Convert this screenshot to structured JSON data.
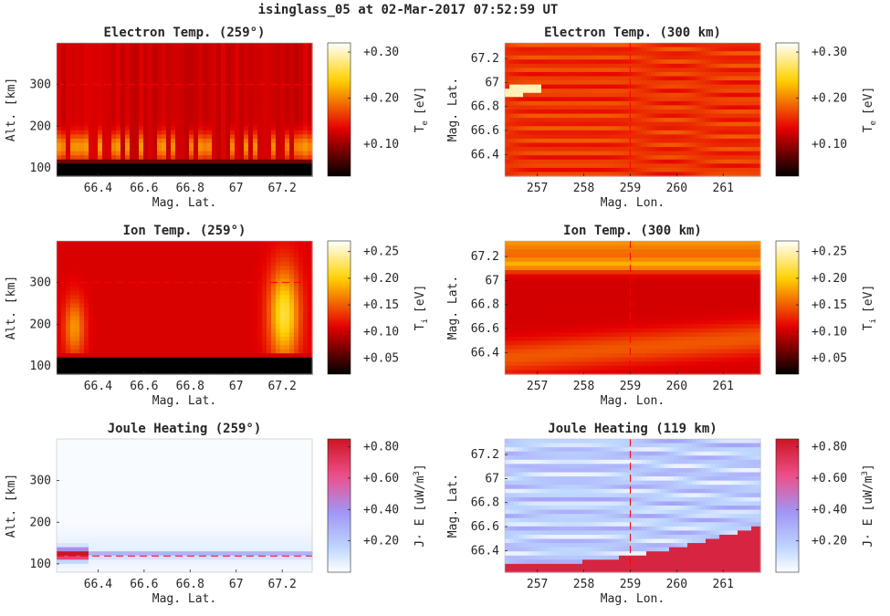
{
  "figure_title": "isinglass_05 at 02-Mar-2017 07:52:59 UT",
  "chart_data": [
    {
      "id": "te_alt",
      "type": "heatmap",
      "title": "Electron Temp. (259°)",
      "xlabel": "Mag. Lat.",
      "ylabel": "Alt. [km]",
      "xlim": [
        66.22,
        67.33
      ],
      "ylim": [
        80,
        400
      ],
      "xticks": [
        66.4,
        66.6,
        66.8,
        67.0,
        67.2
      ],
      "xtick_labels": [
        "66.4",
        "66.6",
        "66.8",
        "67",
        "67.2"
      ],
      "yticks": [
        100,
        200,
        300
      ],
      "ytick_labels": [
        "100",
        "200",
        "300"
      ],
      "colormap": "hot",
      "colorbar": {
        "label": "Te [eV]",
        "label_main": "T",
        "label_sub": "e",
        "label_unit": "[eV]",
        "range": [
          0.03,
          0.32
        ],
        "ticks": [
          0.1,
          0.2,
          0.3
        ],
        "tick_labels": [
          "+0.10",
          "+0.20",
          "+0.30"
        ]
      },
      "reference_line": {
        "axis": "y",
        "value": 300,
        "color": "#ff0000"
      }
    },
    {
      "id": "te_map",
      "type": "heatmap",
      "title": "Electron Temp. (300 km)",
      "xlabel": "Mag. Lon.",
      "ylabel": "Mag. Lat.",
      "xlim": [
        256.3,
        261.8
      ],
      "ylim": [
        66.22,
        67.33
      ],
      "xticks": [
        257,
        258,
        259,
        260,
        261
      ],
      "xtick_labels": [
        "257",
        "258",
        "259",
        "260",
        "261"
      ],
      "yticks": [
        66.4,
        66.6,
        66.8,
        67.0,
        67.2
      ],
      "ytick_labels": [
        "66.4",
        "66.6",
        "66.8",
        "67",
        "67.2"
      ],
      "colormap": "hot",
      "colorbar": {
        "label": "Te [eV]",
        "label_main": "T",
        "label_sub": "e",
        "label_unit": "[eV]",
        "range": [
          0.03,
          0.32
        ],
        "ticks": [
          0.1,
          0.2,
          0.3
        ],
        "tick_labels": [
          "+0.10",
          "+0.20",
          "+0.30"
        ]
      },
      "reference_line": {
        "axis": "x",
        "value": 259,
        "color": "#ff0000"
      }
    },
    {
      "id": "ti_alt",
      "type": "heatmap",
      "title": "Ion Temp. (259°)",
      "xlabel": "Mag. Lat.",
      "ylabel": "Alt. [km]",
      "xlim": [
        66.22,
        67.33
      ],
      "ylim": [
        80,
        400
      ],
      "xticks": [
        66.4,
        66.6,
        66.8,
        67.0,
        67.2
      ],
      "xtick_labels": [
        "66.4",
        "66.6",
        "66.8",
        "67",
        "67.2"
      ],
      "yticks": [
        100,
        200,
        300
      ],
      "ytick_labels": [
        "100",
        "200",
        "300"
      ],
      "colormap": "hot",
      "colorbar": {
        "label": "Ti [eV]",
        "label_main": "T",
        "label_sub": "i",
        "label_unit": "[eV]",
        "range": [
          0.02,
          0.27
        ],
        "ticks": [
          0.05,
          0.1,
          0.15,
          0.2,
          0.25
        ],
        "tick_labels": [
          "+0.05",
          "+0.10",
          "+0.15",
          "+0.20",
          "+0.25"
        ]
      },
      "reference_line": {
        "axis": "y",
        "value": 300,
        "color": "#ff0000"
      }
    },
    {
      "id": "ti_map",
      "type": "heatmap",
      "title": "Ion Temp. (300 km)",
      "xlabel": "Mag. Lon.",
      "ylabel": "Mag. Lat.",
      "xlim": [
        256.3,
        261.8
      ],
      "ylim": [
        66.22,
        67.33
      ],
      "xticks": [
        257,
        258,
        259,
        260,
        261
      ],
      "xtick_labels": [
        "257",
        "258",
        "259",
        "260",
        "261"
      ],
      "yticks": [
        66.4,
        66.6,
        66.8,
        67.0,
        67.2
      ],
      "ytick_labels": [
        "66.4",
        "66.6",
        "66.8",
        "67",
        "67.2"
      ],
      "colormap": "hot",
      "colorbar": {
        "label": "Ti [eV]",
        "label_main": "T",
        "label_sub": "i",
        "label_unit": "[eV]",
        "range": [
          0.02,
          0.27
        ],
        "ticks": [
          0.05,
          0.1,
          0.15,
          0.2,
          0.25
        ],
        "tick_labels": [
          "+0.05",
          "+0.10",
          "+0.15",
          "+0.20",
          "+0.25"
        ]
      },
      "reference_line": {
        "axis": "x",
        "value": 259,
        "color": "#ff0000"
      }
    },
    {
      "id": "jh_alt",
      "type": "heatmap",
      "title": "Joule Heating (259°)",
      "xlabel": "Mag. Lat.",
      "ylabel": "Alt. [km]",
      "xlim": [
        66.22,
        67.33
      ],
      "ylim": [
        80,
        400
      ],
      "xticks": [
        66.4,
        66.6,
        66.8,
        67.0,
        67.2
      ],
      "xtick_labels": [
        "66.4",
        "66.6",
        "66.8",
        "67",
        "67.2"
      ],
      "yticks": [
        100,
        200,
        300
      ],
      "ytick_labels": [
        "100",
        "200",
        "300"
      ],
      "colormap": "white-blue-pink-red",
      "colorbar": {
        "label": "J· E [uW/m3]",
        "label_main": "J· E [uW/m",
        "label_sup": "3",
        "label_end": "]",
        "range": [
          0.0,
          0.85
        ],
        "ticks": [
          0.2,
          0.4,
          0.6,
          0.8
        ],
        "tick_labels": [
          "+0.20",
          "+0.40",
          "+0.60",
          "+0.80"
        ]
      },
      "reference_line": {
        "axis": "y",
        "value": 119,
        "color": "#ff0000"
      }
    },
    {
      "id": "jh_map",
      "type": "heatmap",
      "title": "Joule Heating (119 km)",
      "xlabel": "Mag. Lon.",
      "ylabel": "Mag. Lat.",
      "xlim": [
        256.3,
        261.8
      ],
      "ylim": [
        66.22,
        67.33
      ],
      "xticks": [
        257,
        258,
        259,
        260,
        261
      ],
      "xtick_labels": [
        "257",
        "258",
        "259",
        "260",
        "261"
      ],
      "yticks": [
        66.4,
        66.6,
        66.8,
        67.0,
        67.2
      ],
      "ytick_labels": [
        "66.4",
        "66.6",
        "66.8",
        "67",
        "67.2"
      ],
      "colormap": "white-blue-pink-red",
      "colorbar": {
        "label": "J· E [uW/m3]",
        "label_main": "J· E [uW/m",
        "label_sup": "3",
        "label_end": "]",
        "range": [
          0.0,
          0.85
        ],
        "ticks": [
          0.2,
          0.4,
          0.6,
          0.8
        ],
        "tick_labels": [
          "+0.20",
          "+0.40",
          "+0.60",
          "+0.80"
        ]
      },
      "reference_line": {
        "axis": "x",
        "value": 259,
        "color": "#ff0000"
      }
    }
  ]
}
